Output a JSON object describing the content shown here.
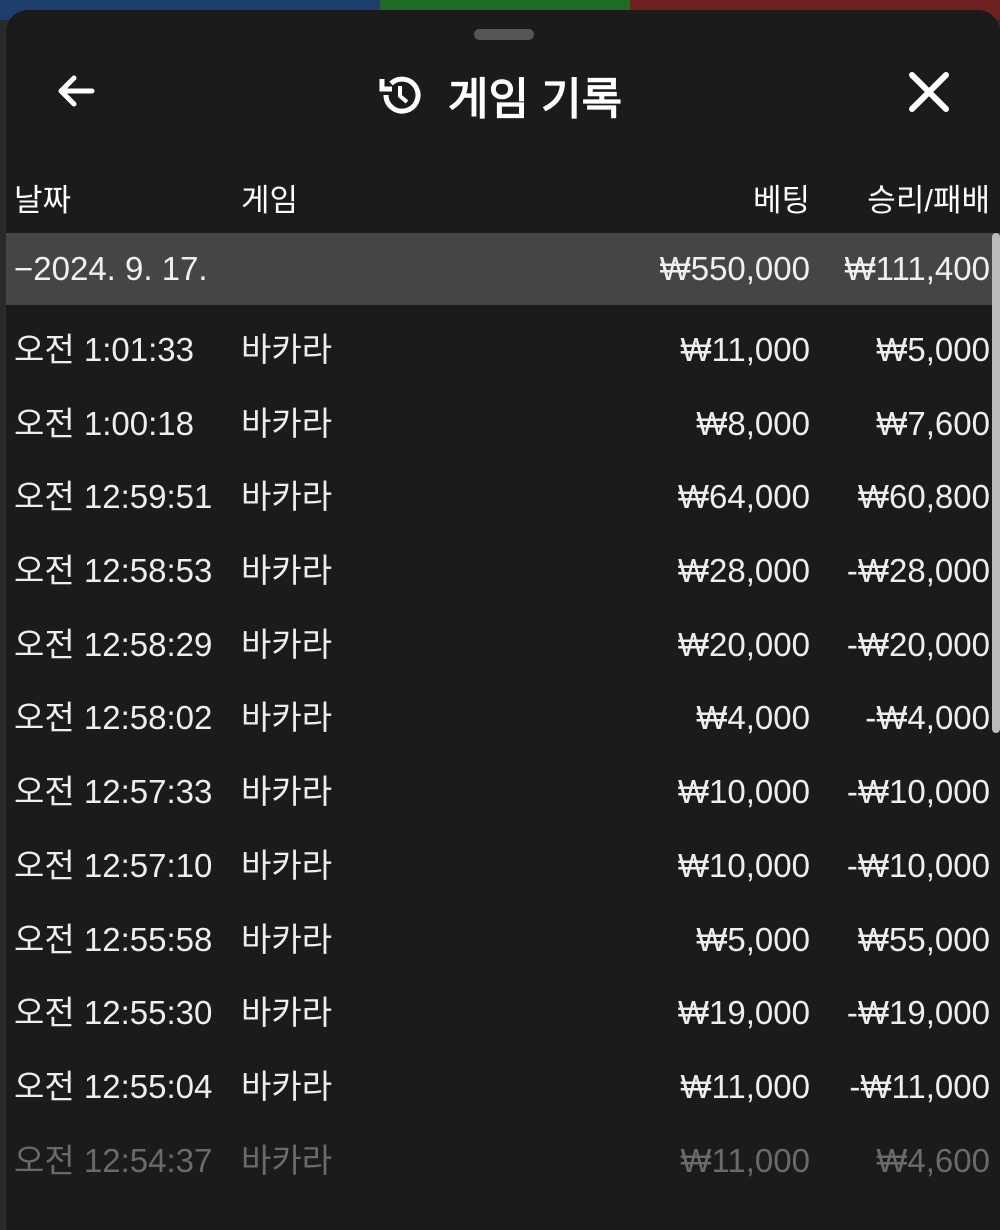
{
  "header": {
    "title": "게임 기록",
    "back_icon": "arrow-left-icon",
    "history_icon": "history-icon",
    "close_icon": "close-icon"
  },
  "columns": {
    "date": "날짜",
    "game": "게임",
    "bet": "베팅",
    "result": "승리/패배"
  },
  "date_group": {
    "date": "−2024. 9. 17.",
    "bet_total": "₩550,000",
    "result_total": "₩111,400"
  },
  "rows": [
    {
      "time": "오전 1:01:33",
      "game": "바카라",
      "bet": "₩11,000",
      "result": "₩5,000"
    },
    {
      "time": "오전 1:00:18",
      "game": "바카라",
      "bet": "₩8,000",
      "result": "₩7,600"
    },
    {
      "time": "오전 12:59:51",
      "game": "바카라",
      "bet": "₩64,000",
      "result": "₩60,800"
    },
    {
      "time": "오전 12:58:53",
      "game": "바카라",
      "bet": "₩28,000",
      "result": "-₩28,000"
    },
    {
      "time": "오전 12:58:29",
      "game": "바카라",
      "bet": "₩20,000",
      "result": "-₩20,000"
    },
    {
      "time": "오전 12:58:02",
      "game": "바카라",
      "bet": "₩4,000",
      "result": "-₩4,000"
    },
    {
      "time": "오전 12:57:33",
      "game": "바카라",
      "bet": "₩10,000",
      "result": "-₩10,000"
    },
    {
      "time": "오전 12:57:10",
      "game": "바카라",
      "bet": "₩10,000",
      "result": "-₩10,000"
    },
    {
      "time": "오전 12:55:58",
      "game": "바카라",
      "bet": "₩5,000",
      "result": "₩55,000"
    },
    {
      "time": "오전 12:55:30",
      "game": "바카라",
      "bet": "₩19,000",
      "result": "-₩19,000"
    },
    {
      "time": "오전 12:55:04",
      "game": "바카라",
      "bet": "₩11,000",
      "result": "-₩11,000"
    },
    {
      "time": "오전 12:54:37",
      "game": "바카라",
      "bet": "₩11,000",
      "result": "₩4,600"
    }
  ]
}
